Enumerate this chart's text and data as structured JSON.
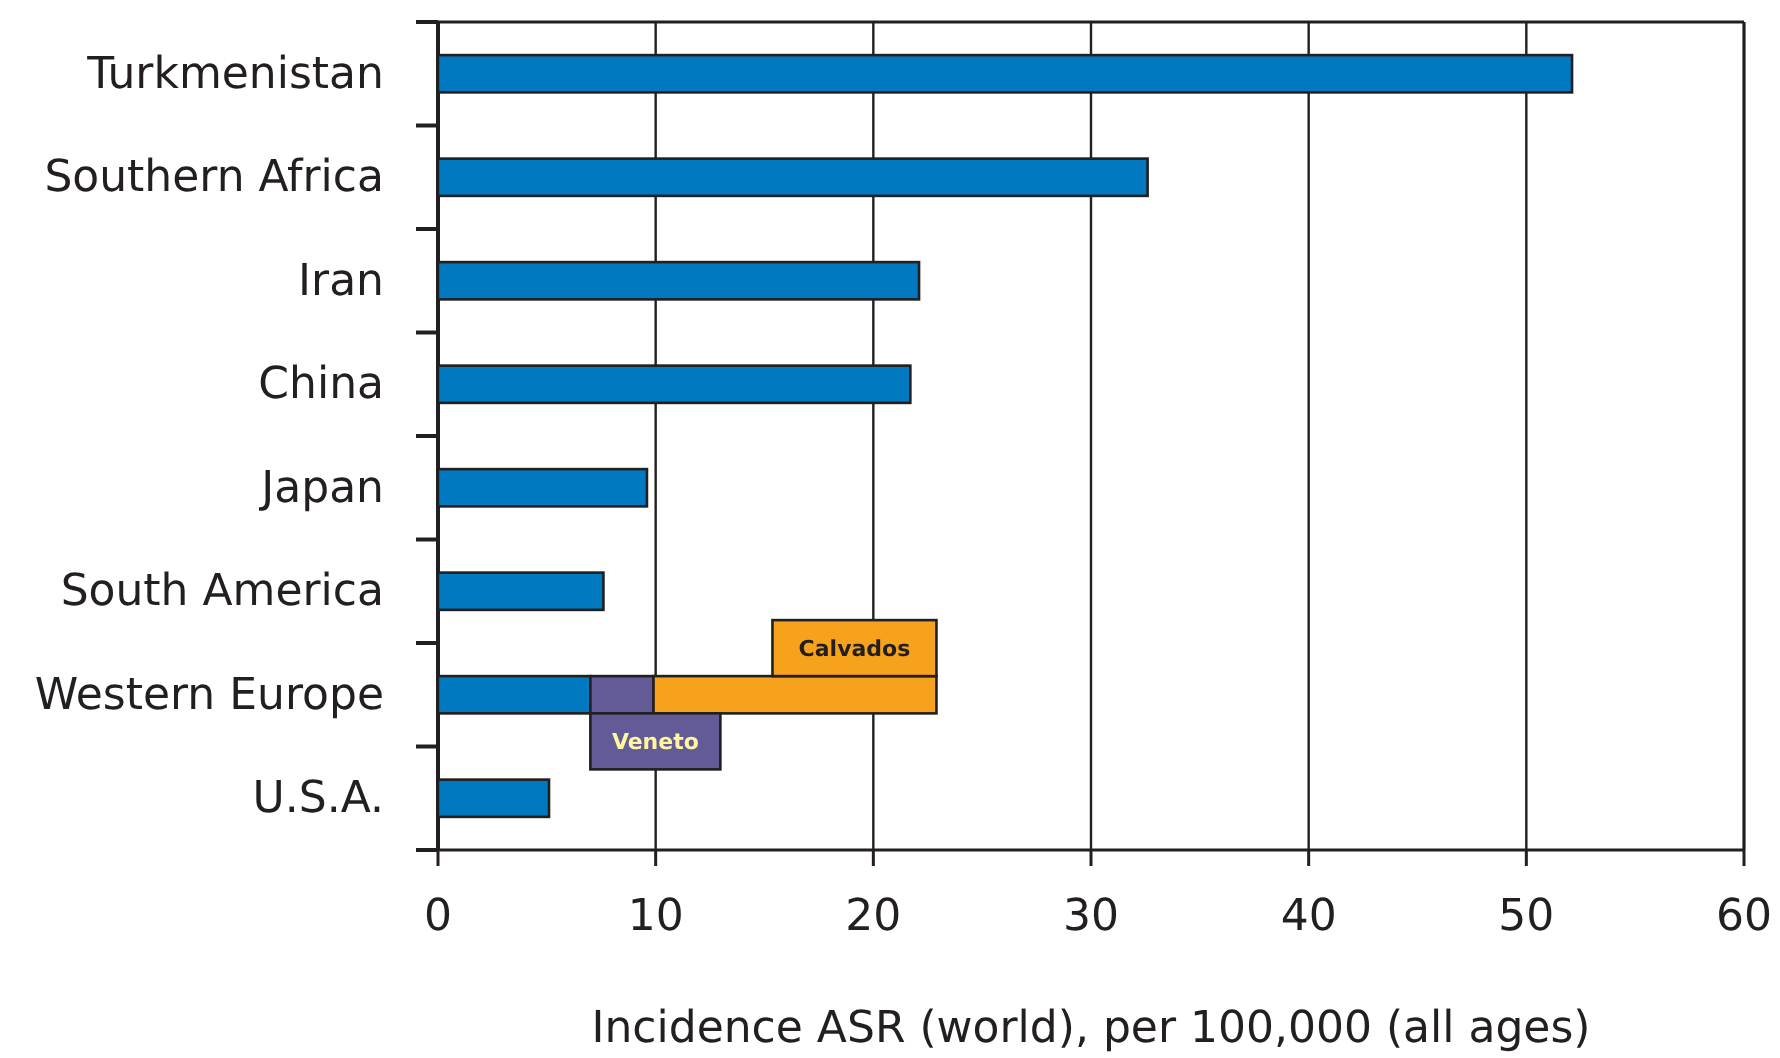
{
  "chart_data": {
    "type": "bar",
    "orientation": "horizontal",
    "xlabel": "Incidence ASR (world), per 100,000 (all ages)",
    "categories": [
      "Turkmenistan",
      "Southern Africa",
      "Iran",
      "China",
      "Japan",
      "South America",
      "Western Europe",
      "U.S.A."
    ],
    "series": [
      {
        "color": "#0079c1",
        "values": [
          52.1,
          32.6,
          22.1,
          21.7,
          9.6,
          7.6,
          7.0,
          5.1
        ]
      },
      {
        "name": "Veneto",
        "color": "#625b97",
        "values": [
          null,
          null,
          null,
          null,
          null,
          null,
          2.9,
          null
        ],
        "base": [
          null,
          null,
          null,
          null,
          null,
          null,
          7.0,
          null
        ]
      },
      {
        "name": "Calvados",
        "color": "#f7a21d",
        "values": [
          null,
          null,
          null,
          null,
          null,
          null,
          13.0,
          null
        ],
        "base": [
          null,
          null,
          null,
          null,
          null,
          null,
          9.9,
          null
        ]
      }
    ],
    "xlim": [
      0,
      60
    ],
    "xticks": [
      0,
      10,
      20,
      30,
      40,
      50,
      60
    ],
    "grid": "x"
  }
}
